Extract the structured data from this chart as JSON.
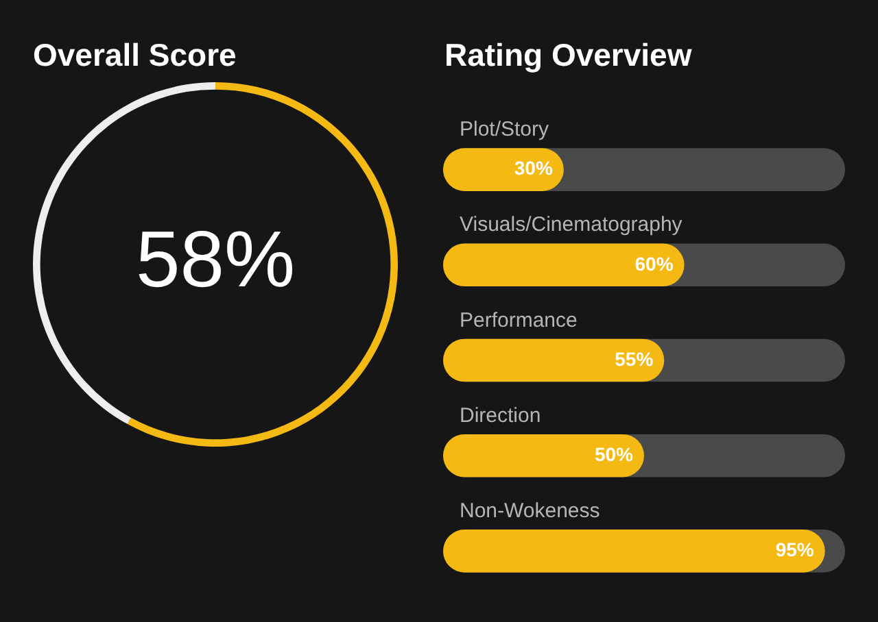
{
  "chart_data": [
    {
      "type": "donut",
      "title": "Overall Score",
      "categories": [
        null,
        null
      ],
      "values": [
        58,
        42
      ],
      "colors": [
        "#f5b914",
        "#eeeeee"
      ],
      "value_labels": [
        "58%",
        null
      ],
      "legend": false
    },
    {
      "type": "bar",
      "orientation": "horizontal",
      "title": "Rating Overview",
      "categories": [
        "Plot/Story",
        "Visuals/Cinematography",
        "Performance",
        "Direction",
        "Non-Wokeness"
      ],
      "series": [
        {
          "color": "#f5b914",
          "values": [
            30,
            60,
            55,
            50,
            95
          ],
          "value_labels": [
            "30%",
            "60%",
            "55%",
            "50%",
            "95%"
          ]
        }
      ],
      "tick_labels": false,
      "legend": false
    }
  ]
}
